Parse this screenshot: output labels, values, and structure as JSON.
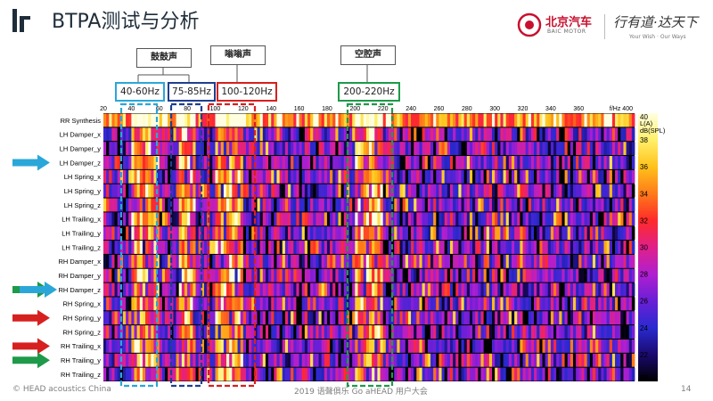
{
  "slide": {
    "title": "BTPA测试与分析",
    "brand_name": "北京汽车",
    "brand_sub": "BAIC MOTOR",
    "slogan": "行有道·达天下",
    "slogan_en": "Your Wish · Our Ways",
    "footer_left": "© HEAD acoustics China",
    "footer_center": "2019 语聲俱乐 Go aHEAD 用户大会",
    "page_number": "14"
  },
  "annotations": {
    "categories": [
      {
        "label": "鼓鼓声"
      },
      {
        "label": "嗡嗡声"
      },
      {
        "label": "空腔声"
      }
    ],
    "bands": [
      {
        "label": "40-60Hz",
        "color": "#2aa7d8"
      },
      {
        "label": "75-85Hz",
        "color": "#1f3f8f"
      },
      {
        "label": "100-120Hz",
        "color": "#d62020"
      },
      {
        "label": "200-220Hz",
        "color": "#1e9a4a"
      }
    ],
    "arrows": [
      {
        "row": "LH Damper_z",
        "colors": [
          "#2aa7d8"
        ]
      },
      {
        "row": "RH Damper_z",
        "colors": [
          "#1e9a4a",
          "#2aa7d8"
        ]
      },
      {
        "row": "RH Spring_y",
        "colors": [
          "#d62020"
        ]
      },
      {
        "row": "RH Trailing_x",
        "colors": [
          "#d62020"
        ]
      },
      {
        "row": "RH Trailing_y",
        "colors": [
          "#1e9a4a"
        ]
      }
    ]
  },
  "chart_data": {
    "type": "heatmap",
    "x_unit_label": "f/Hz",
    "x_ticks": [
      20,
      40,
      60,
      80,
      100,
      120,
      140,
      160,
      180,
      200,
      220,
      240,
      260,
      280,
      300,
      320,
      340,
      360,
      400
    ],
    "xlim": [
      20,
      400
    ],
    "rows": [
      "RR Synthesis",
      "LH Damper_x",
      "LH Damper_y",
      "LH Damper_z",
      "LH Spring_x",
      "LH Spring_y",
      "LH Spring_z",
      "LH Trailing_x",
      "LH Trailing_y",
      "LH Trailing_z",
      "RH Damper_x",
      "RH Damper_y",
      "RH Damper_z",
      "RH Spring_x",
      "RH Spring_y",
      "RH Spring_z",
      "RH Trailing_x",
      "RH Trailing_y",
      "RH Trailing_z"
    ],
    "colorbar": {
      "title": "L(A)",
      "unit": "dB(SPL)",
      "ticks": [
        40,
        38,
        36,
        34,
        32,
        30,
        28,
        26,
        24,
        22,
        20
      ],
      "range": [
        20,
        40
      ],
      "colors": [
        "#000000",
        "#1a0a6e",
        "#2a2ad0",
        "#6a1fd6",
        "#b01fd0",
        "#e0208a",
        "#ff2a2a",
        "#ff7a1a",
        "#ffc21a",
        "#fff06a",
        "#ffffe0"
      ]
    }
  }
}
